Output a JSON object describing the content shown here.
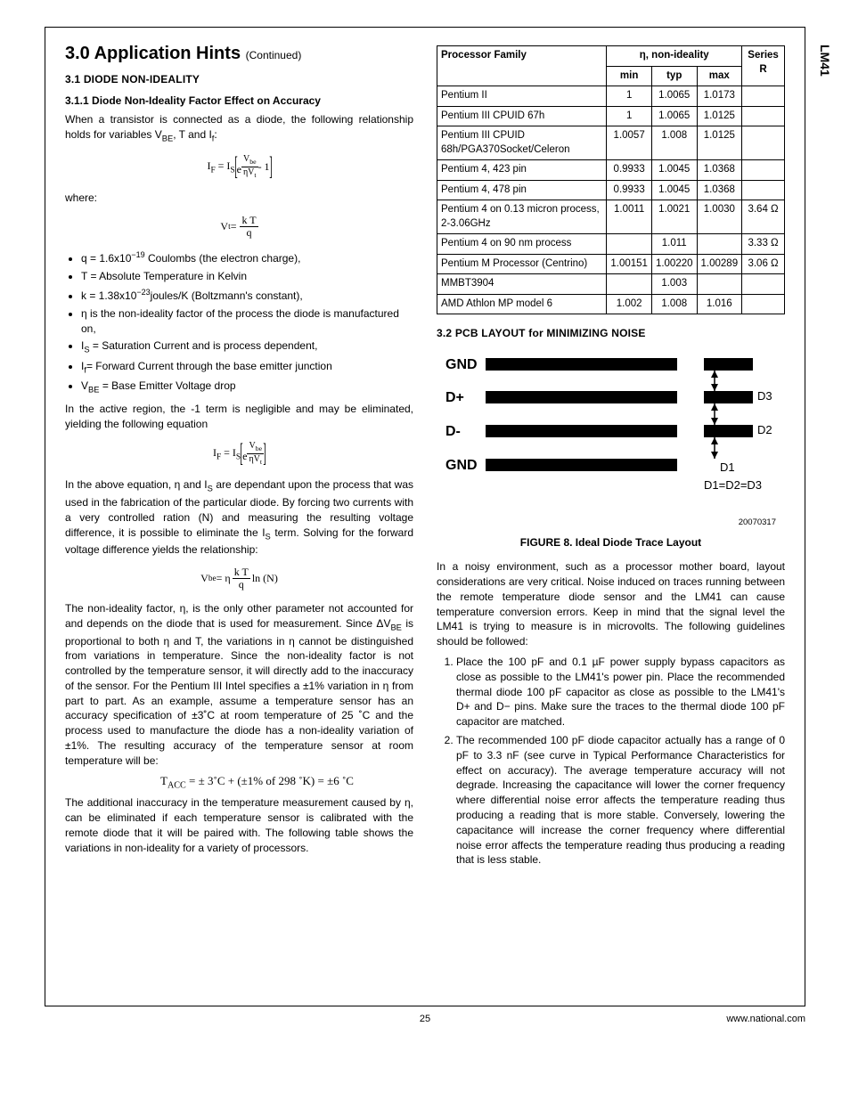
{
  "sideLabel": "LM41",
  "header": {
    "title": "3.0 Application Hints",
    "continued": "(Continued)"
  },
  "left": {
    "sec31": "3.1 DIODE NON-IDEALITY",
    "sec311": "3.1.1 Diode Non-Ideality Factor Effect on Accuracy",
    "p1a": "When a transistor is connected as a diode, the following relationship holds for variables V",
    "p1b": ", T and I",
    "p1c": ":",
    "where": "where:",
    "bullets": {
      "b1a": "q = 1.6x10",
      "b1b": " Coulombs (the electron charge),",
      "b1sup": "−19",
      "b2": "T = Absolute Temperature in Kelvin",
      "b3a": "k = 1.38x10",
      "b3sup": "−23",
      "b3b": "joules/K (Boltzmann's constant),",
      "b4": "η is the non-ideality factor of the process the diode is manufactured on,",
      "b5a": "I",
      "b5b": " = Saturation Current and is process dependent,",
      "b6a": "I",
      "b6b": "= Forward Current through the base emitter junction",
      "b7a": "V",
      "b7b": " = Base Emitter Voltage drop"
    },
    "p2": "In the active region, the -1 term is negligible and may be eliminated, yielding the following equation",
    "p3a": "In the above equation, η and I",
    "p3b": " are dependant upon the process that was used in the fabrication of the particular diode. By forcing two currents with a very controlled ration (N) and measuring the resulting voltage difference, it is possible to eliminate the I",
    "p3c": " term. Solving for the forward voltage difference yields the relationship:",
    "p4a": "The non-ideality factor, η, is the only other parameter not accounted for and depends on the diode that is used for measurement. Since ΔV",
    "p4b": " is proportional to both η and T, the variations in η cannot be distinguished from variations in temperature. Since the non-ideality factor is not controlled by the temperature sensor, it will directly add to the inaccuracy of the sensor. For the Pentium III Intel specifies a ±1% variation in η from part to part. As an example, assume a temperature sensor has an accuracy specification of ±3˚C at room temperature of 25 ˚C and the process used to manufacture the diode has a non-ideality variation of ±1%. The resulting accuracy of the temperature sensor at room temperature will be:",
    "tacc": "T",
    "taccRest": " = ± 3˚C + (±1% of 298 ˚K) = ±6 ˚C",
    "p5": "The additional inaccuracy in the temperature measurement caused by η, can be eliminated if each temperature sensor is calibrated with the remote diode that it will be paired with. The following table shows the variations in non-ideality for a variety of processors."
  },
  "eqs": {
    "if": "I",
    "ifs": "F",
    "eq": "=",
    "is": "I",
    "iss": "S",
    "e": "e",
    "vbe": "V",
    "vbes": "be",
    "etaVt": "ηV",
    "t": "t",
    "minus1": " - 1",
    "vt": "V",
    "kT": "k T",
    "q": "q",
    "vbeBig": "V",
    "ln": " ln (N)"
  },
  "table": {
    "h1": "Processor Family",
    "h2": "η, non-ideality",
    "h3": "Series R",
    "sub1": "min",
    "sub2": "typ",
    "sub3": "max",
    "rows": [
      {
        "name": "Pentium II",
        "min": "1",
        "typ": "1.0065",
        "max": "1.0173",
        "r": ""
      },
      {
        "name": "Pentium III CPUID 67h",
        "min": "1",
        "typ": "1.0065",
        "max": "1.0125",
        "r": ""
      },
      {
        "name": "Pentium III CPUID 68h/PGA370Socket/Celeron",
        "min": "1.0057",
        "typ": "1.008",
        "max": "1.0125",
        "r": ""
      },
      {
        "name": "Pentium 4, 423 pin",
        "min": "0.9933",
        "typ": "1.0045",
        "max": "1.0368",
        "r": ""
      },
      {
        "name": "Pentium 4, 478 pin",
        "min": "0.9933",
        "typ": "1.0045",
        "max": "1.0368",
        "r": ""
      },
      {
        "name": "Pentium 4 on 0.13 micron process, 2-3.06GHz",
        "min": "1.0011",
        "typ": "1.0021",
        "max": "1.0030",
        "r": "3.64 Ω"
      },
      {
        "name": "Pentium 4 on 90 nm process",
        "min": "",
        "typ": "1.011",
        "max": "",
        "r": "3.33 Ω"
      },
      {
        "name": "Pentium M Processor (Centrino)",
        "min": "1.00151",
        "typ": "1.00220",
        "max": "1.00289",
        "r": "3.06 Ω"
      },
      {
        "name": "MMBT3904",
        "min": "",
        "typ": "1.003",
        "max": "",
        "r": ""
      },
      {
        "name": "AMD Athlon MP model 6",
        "min": "1.002",
        "typ": "1.008",
        "max": "1.016",
        "r": ""
      }
    ]
  },
  "right": {
    "sec32": "3.2 PCB LAYOUT for MINIMIZING NOISE",
    "figNumber": "20070317",
    "figCaption": "FIGURE 8. Ideal Diode Trace Layout",
    "p1": "In a noisy environment, such as a processor mother board, layout considerations are very critical. Noise induced on traces running between the remote temperature diode sensor and the LM41 can cause temperature conversion errors. Keep in mind that the signal level the LM41 is trying to measure is in microvolts. The following guidelines should be followed:",
    "li1": "Place the 100 pF and 0.1 µF power supply bypass capacitors as close as possible to the LM41's power pin. Place the recommended thermal diode 100 pF capacitor as close as possible to the LM41's D+ and D− pins. Make sure the traces to the thermal diode 100 pF capacitor are matched.",
    "li2": "The recommended 100 pF diode capacitor actually has a range of 0 pF to 3.3 nF (see curve in Typical Performance Characteristics for effect on accuracy). The average temperature accuracy will not degrade. Increasing the capacitance will lower the corner frequency where differential noise error affects the temperature reading thus producing a reading that is more stable. Conversely, lowering the capacitance will increase the corner frequency where differential noise error affects the temperature reading thus producing a reading that is less stable."
  },
  "fig": {
    "labels": [
      "GND",
      "D+",
      "D-",
      "GND"
    ],
    "dNote": "D1=D2=D3",
    "d1": "D1",
    "d2": "D2",
    "d3": "D3"
  },
  "footer": {
    "page": "25",
    "url": "www.national.com"
  }
}
